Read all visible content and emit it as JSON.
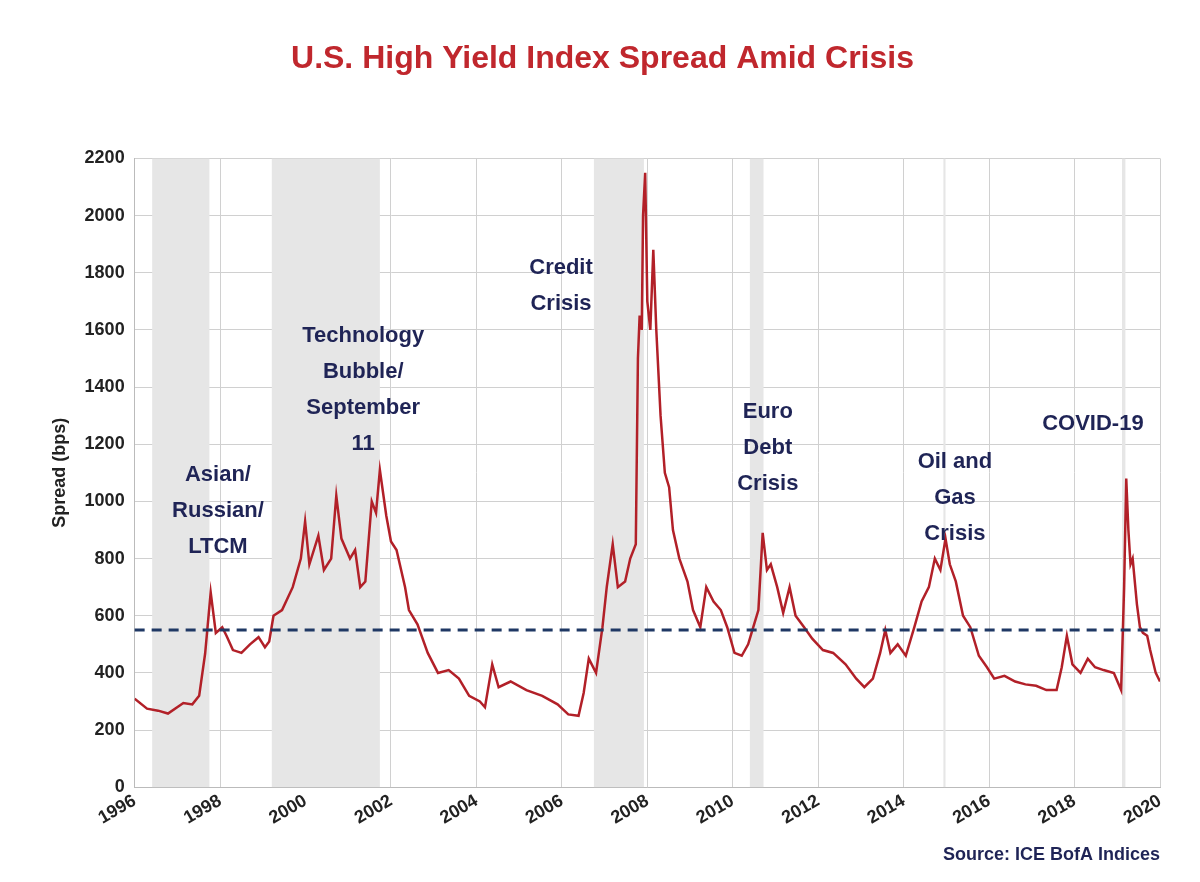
{
  "chart_data": {
    "type": "line",
    "title": "U.S. High Yield Index Spread Amid Crisis",
    "y_label": "Spread (bps)",
    "source": "Source: ICE BofA Indices",
    "color": "#b22028",
    "grid": true,
    "xlim": [
      1996,
      2020
    ],
    "xticks": [
      1996,
      1998,
      2000,
      2002,
      2004,
      2006,
      2008,
      2010,
      2012,
      2014,
      2016,
      2018,
      2020
    ],
    "ylim": [
      0,
      2200
    ],
    "yticks": [
      0,
      200,
      400,
      600,
      800,
      1000,
      1200,
      1400,
      1600,
      1800,
      2000,
      2200
    ],
    "x": [
      1996.0,
      1996.29,
      1996.55,
      1996.78,
      1997.14,
      1997.35,
      1997.51,
      1997.65,
      1997.78,
      1997.9,
      1998.05,
      1998.15,
      1998.3,
      1998.5,
      1998.7,
      1998.9,
      1999.05,
      1999.15,
      1999.25,
      1999.45,
      1999.7,
      1999.89,
      1999.99,
      2000.09,
      2000.3,
      2000.43,
      2000.6,
      2000.72,
      2000.84,
      2001.04,
      2001.16,
      2001.28,
      2001.4,
      2001.55,
      2001.65,
      2001.74,
      2001.89,
      2002.0,
      2002.13,
      2002.33,
      2002.42,
      2002.62,
      2002.86,
      2003.1,
      2003.35,
      2003.59,
      2003.83,
      2004.08,
      2004.2,
      2004.37,
      2004.52,
      2004.8,
      2005.17,
      2005.54,
      2005.9,
      2006.15,
      2006.39,
      2006.51,
      2006.63,
      2006.8,
      2006.95,
      2007.05,
      2007.19,
      2007.31,
      2007.48,
      2007.6,
      2007.73,
      2007.78,
      2007.82,
      2007.87,
      2007.9,
      2007.95,
      2008.0,
      2008.07,
      2008.14,
      2008.21,
      2008.31,
      2008.41,
      2008.51,
      2008.6,
      2008.75,
      2008.94,
      2009.07,
      2009.24,
      2009.38,
      2009.55,
      2009.72,
      2009.87,
      2010.04,
      2010.21,
      2010.36,
      2010.48,
      2010.6,
      2010.7,
      2010.8,
      2010.89,
      2011.04,
      2011.18,
      2011.33,
      2011.47,
      2011.67,
      2011.86,
      2012.11,
      2012.35,
      2012.64,
      2012.89,
      2013.08,
      2013.28,
      2013.45,
      2013.57,
      2013.69,
      2013.86,
      2014.05,
      2014.25,
      2014.42,
      2014.59,
      2014.73,
      2014.86,
      2014.98,
      2015.08,
      2015.22,
      2015.39,
      2015.56,
      2015.76,
      2015.95,
      2016.12,
      2016.36,
      2016.61,
      2016.85,
      2017.1,
      2017.34,
      2017.58,
      2017.7,
      2017.82,
      2017.95,
      2018.14,
      2018.31,
      2018.48,
      2018.68,
      2018.92,
      2019.09,
      2019.16,
      2019.21,
      2019.26,
      2019.31,
      2019.36,
      2019.46,
      2019.53,
      2019.6,
      2019.7,
      2019.77,
      2019.9,
      2020.0
    ],
    "values": [
      310,
      275,
      268,
      258,
      295,
      290,
      320,
      468,
      682,
      540,
      560,
      530,
      480,
      470,
      500,
      525,
      490,
      510,
      600,
      620,
      700,
      800,
      930,
      780,
      880,
      760,
      800,
      1020,
      870,
      800,
      830,
      700,
      720,
      1000,
      960,
      1110,
      950,
      860,
      830,
      700,
      620,
      570,
      470,
      400,
      410,
      380,
      320,
      300,
      280,
      430,
      350,
      370,
      340,
      320,
      290,
      255,
      250,
      330,
      450,
      400,
      560,
      700,
      850,
      700,
      720,
      800,
      850,
      1500,
      1650,
      1600,
      2000,
      2150,
      1700,
      1600,
      1880,
      1600,
      1300,
      1100,
      1050,
      900,
      800,
      720,
      620,
      560,
      700,
      650,
      620,
      560,
      470,
      460,
      500,
      560,
      620,
      890,
      760,
      780,
      700,
      610,
      700,
      600,
      560,
      520,
      480,
      470,
      430,
      380,
      350,
      380,
      470,
      550,
      470,
      500,
      460,
      560,
      650,
      700,
      800,
      760,
      870,
      780,
      720,
      600,
      560,
      460,
      420,
      380,
      390,
      370,
      360,
      355,
      340,
      340,
      420,
      530,
      430,
      400,
      450,
      420,
      410,
      400,
      340,
      700,
      1080,
      900,
      780,
      800,
      640,
      560,
      540,
      530,
      480,
      400,
      370
    ],
    "reference_line": {
      "value": 550,
      "color": "#1f3864",
      "line_style": "dashed"
    },
    "shaded_periods": {
      "color": "#e6e6e6",
      "ranges": [
        [
          1996.41,
          1997.75
        ],
        [
          1999.21,
          2001.74
        ],
        [
          2006.75,
          2007.92
        ],
        [
          2010.4,
          2010.72
        ],
        [
          2014.93,
          2014.98
        ],
        [
          2019.11,
          2019.19
        ]
      ]
    },
    "annotations": [
      {
        "text": [
          "Asian/",
          "Russian/",
          "LTCM"
        ]
      },
      {
        "text": [
          "Technology",
          "Bubble/",
          "September",
          "11"
        ]
      },
      {
        "text": [
          "Credit",
          "Crisis"
        ]
      },
      {
        "text": [
          "Euro",
          "Debt",
          "Crisis"
        ]
      },
      {
        "text": [
          "Oil and",
          "Gas",
          "Crisis"
        ]
      },
      {
        "text": [
          "COVID-19"
        ]
      }
    ]
  }
}
